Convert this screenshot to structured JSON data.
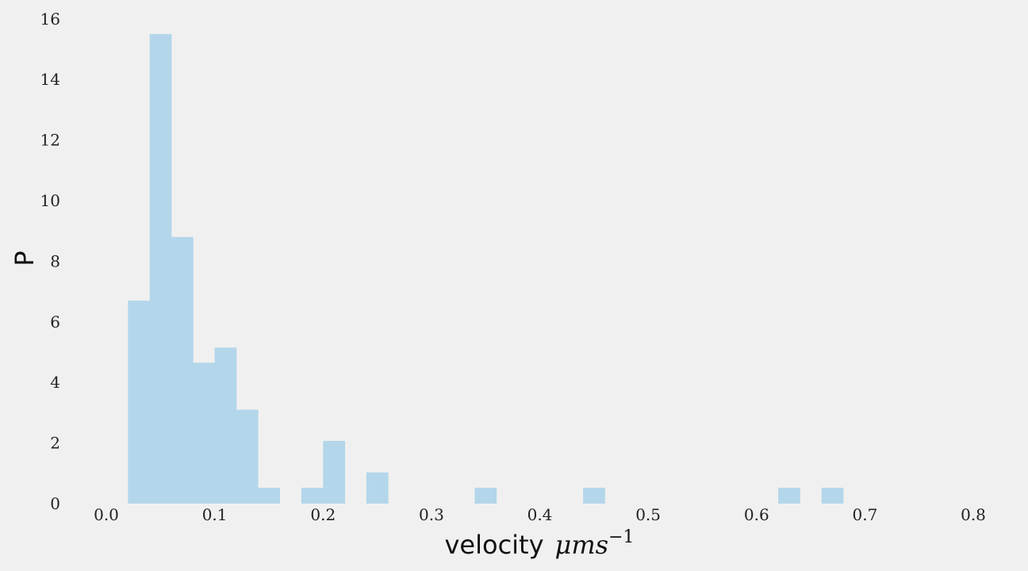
{
  "chart_data": {
    "type": "bar",
    "title": "",
    "xlabel": "velocity",
    "xlabel_math": "μms",
    "xlabel_sup": "−1",
    "ylabel": "P",
    "xlim": [
      -0.02,
      0.8
    ],
    "ylim": [
      0,
      16
    ],
    "grid": false,
    "bin_width": 0.02,
    "bar_color": "#b3d6ea",
    "background": "#f0f0f0",
    "x_ticks": [
      "0.0",
      "0.1",
      "0.2",
      "0.3",
      "0.4",
      "0.5",
      "0.6",
      "0.7",
      "0.8"
    ],
    "y_ticks": [
      "0",
      "2",
      "4",
      "6",
      "8",
      "10",
      "12",
      "14",
      "16"
    ],
    "bins": [
      {
        "start": 0.02,
        "value": 6.7
      },
      {
        "start": 0.04,
        "value": 15.5
      },
      {
        "start": 0.06,
        "value": 8.8
      },
      {
        "start": 0.08,
        "value": 4.65
      },
      {
        "start": 0.1,
        "value": 5.15
      },
      {
        "start": 0.12,
        "value": 3.1
      },
      {
        "start": 0.14,
        "value": 0.52
      },
      {
        "start": 0.18,
        "value": 0.52
      },
      {
        "start": 0.2,
        "value": 2.07
      },
      {
        "start": 0.24,
        "value": 1.03
      },
      {
        "start": 0.34,
        "value": 0.52
      },
      {
        "start": 0.44,
        "value": 0.52
      },
      {
        "start": 0.62,
        "value": 0.52
      },
      {
        "start": 0.66,
        "value": 0.52
      }
    ]
  }
}
